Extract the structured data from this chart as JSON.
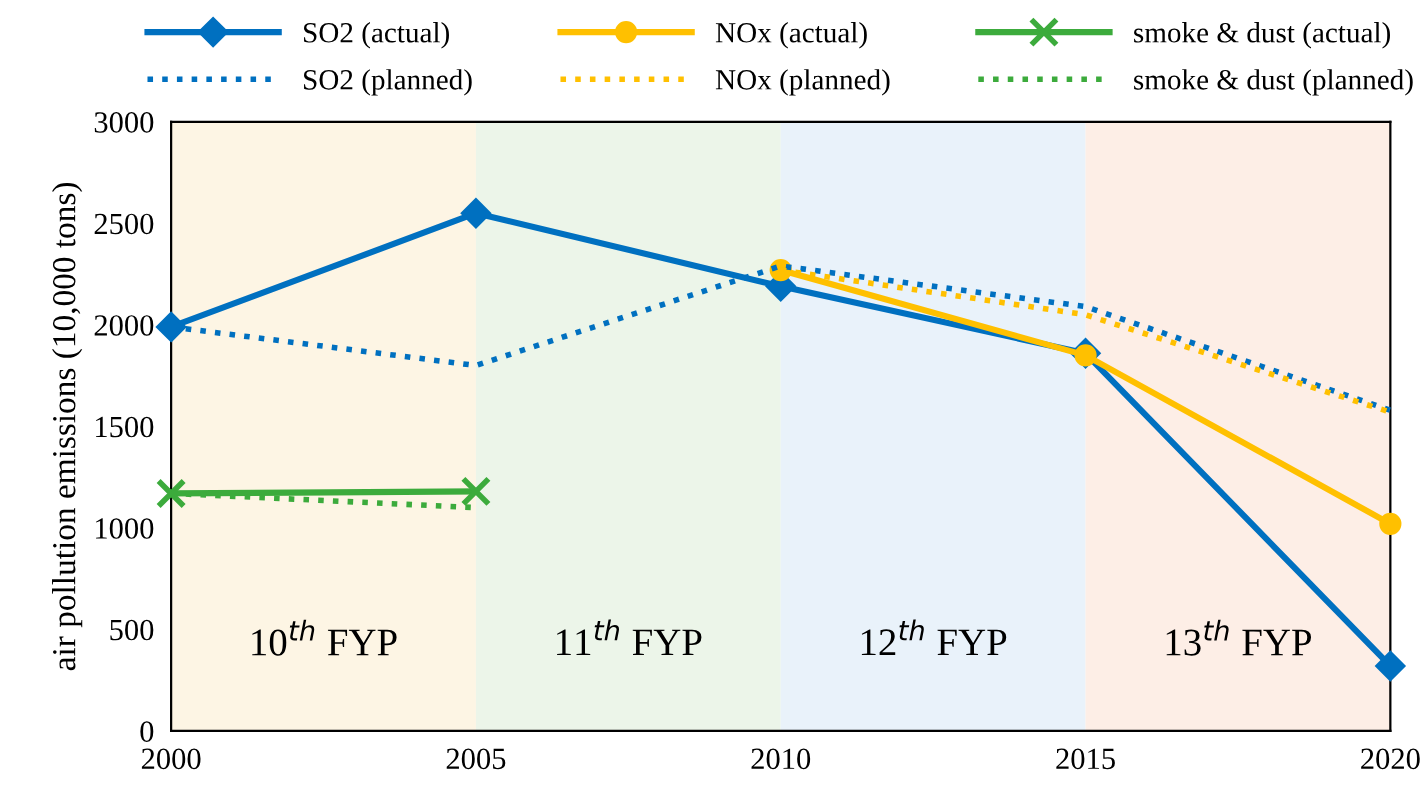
{
  "chart_data": {
    "type": "line",
    "ylabel": "air pollution emissions (10,000 tons)",
    "x": [
      2000,
      2005,
      2010,
      2015,
      2020
    ],
    "xlim": [
      2000,
      2020
    ],
    "xticks": [
      2000,
      2005,
      2010,
      2015,
      2020
    ],
    "ylim": [
      0,
      3000
    ],
    "yticks": [
      0,
      500,
      1000,
      1500,
      2000,
      2500,
      3000
    ],
    "grid": false,
    "legend": "top",
    "series": [
      {
        "name": "SO2 (actual)",
        "color": "#0070c0",
        "marker": "diamond",
        "line_style": "solid",
        "values": [
          1990,
          2550,
          2190,
          1860,
          320
        ]
      },
      {
        "name": "NOx (actual)",
        "color": "#ffc000",
        "marker": "circle",
        "line_style": "solid",
        "values": [
          null,
          null,
          2270,
          1850,
          1020
        ]
      },
      {
        "name": "smoke & dust (actual)",
        "color": "#3cab3c",
        "marker": "cross",
        "line_style": "solid",
        "values": [
          1170,
          1180,
          null,
          null,
          null
        ]
      },
      {
        "name": "SO2 (planned)",
        "color": "#0070c0",
        "marker": "none",
        "line_style": "dotted",
        "values": [
          1990,
          1800,
          2290,
          2090,
          1580
        ]
      },
      {
        "name": "NOx (planned)",
        "color": "#ffc000",
        "marker": "none",
        "line_style": "dotted",
        "values": [
          null,
          null,
          2270,
          2050,
          1570
        ]
      },
      {
        "name": "smoke & dust (planned)",
        "color": "#3cab3c",
        "marker": "none",
        "line_style": "dotted",
        "values": [
          1170,
          1100,
          null,
          null,
          null
        ]
      }
    ],
    "bands": [
      {
        "axis": "x",
        "from": 2000,
        "to": 2005,
        "label": "10$^{th}$ FYP",
        "color": "#fdf5e4"
      },
      {
        "axis": "x",
        "from": 2005,
        "to": 2010,
        "label": "11$^{th}$ FYP",
        "color": "#ecf5e9"
      },
      {
        "axis": "x",
        "from": 2010,
        "to": 2015,
        "label": "12$^{th}$ FYP",
        "color": "#e9f2fa"
      },
      {
        "axis": "x",
        "from": 2015,
        "to": 2020,
        "label": "13$^{th}$ FYP",
        "color": "#fdeee6"
      }
    ]
  }
}
